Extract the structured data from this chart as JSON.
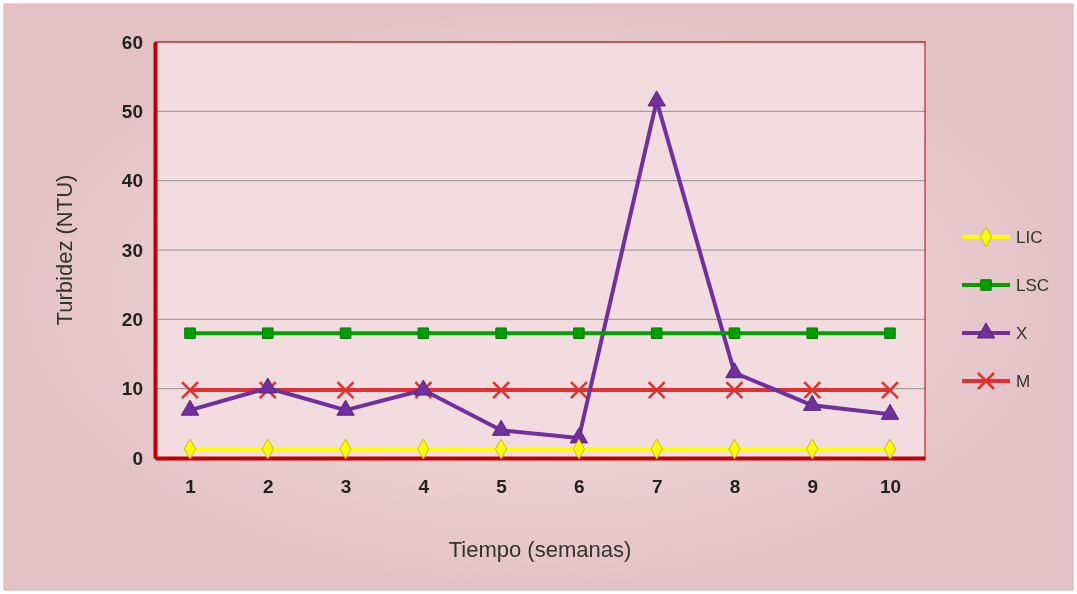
{
  "chart_data": {
    "type": "line",
    "xlabel": "Tiempo (semanas)",
    "ylabel": "Turbidez (NTU)",
    "categories": [
      "1",
      "2",
      "3",
      "4",
      "5",
      "6",
      "7",
      "8",
      "9",
      "10"
    ],
    "ylim": [
      0,
      60
    ],
    "yticks": [
      0,
      10,
      20,
      30,
      40,
      50,
      60
    ],
    "grid": "y",
    "legend": "right",
    "series": [
      {
        "name": "LIC",
        "color": "#ffff00",
        "marker": "diamond",
        "values": [
          1.3,
          1.3,
          1.3,
          1.3,
          1.3,
          1.3,
          1.3,
          1.3,
          1.3,
          1.3
        ]
      },
      {
        "name": "LSC",
        "color": "#00a000",
        "marker": "square",
        "values": [
          18,
          18,
          18,
          18,
          18,
          18,
          18,
          18,
          18,
          18
        ]
      },
      {
        "name": "X",
        "color": "#7030a0",
        "marker": "triangle",
        "values": [
          6.9,
          10.1,
          6.9,
          9.8,
          4,
          2.9,
          51.5,
          12.3,
          7.6,
          6.3
        ]
      },
      {
        "name": "M",
        "color": "#e03030",
        "marker": "cross",
        "values": [
          9.8,
          9.8,
          9.8,
          9.8,
          9.8,
          9.8,
          9.8,
          9.8,
          9.8,
          9.8
        ]
      }
    ]
  }
}
